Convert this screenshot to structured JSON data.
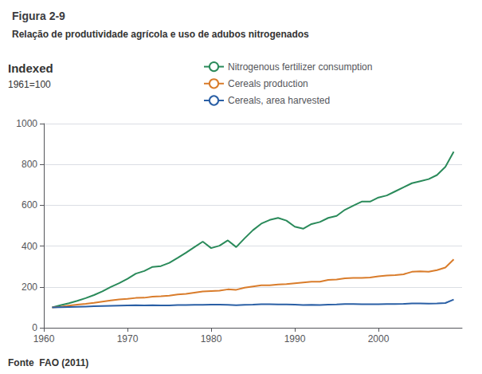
{
  "chart_data": {
    "type": "line",
    "title": "Figura 2-9",
    "subtitle": "Relação de produtividade agrícola e uso de adubos nitrogenados",
    "ylabel": "Indexed",
    "annotations": [
      "1961=100",
      "Fonte  FAO (2011)"
    ],
    "x": [
      1961,
      1962,
      1963,
      1964,
      1965,
      1966,
      1967,
      1968,
      1969,
      1970,
      1971,
      1972,
      1973,
      1974,
      1975,
      1976,
      1977,
      1978,
      1979,
      1980,
      1981,
      1982,
      1983,
      1984,
      1985,
      1986,
      1987,
      1988,
      1989,
      1990,
      1991,
      1992,
      1993,
      1994,
      1995,
      1996,
      1997,
      1998,
      1999,
      2000,
      2001,
      2002,
      2003,
      2004,
      2005,
      2006,
      2007,
      2008,
      2009
    ],
    "series": [
      {
        "name": "Nitrogenous fertilizer consumption",
        "color": "#2a8a5a",
        "values": [
          100,
          110,
          120,
          132,
          145,
          160,
          178,
          200,
          218,
          240,
          265,
          278,
          298,
          302,
          318,
          342,
          368,
          395,
          422,
          390,
          402,
          428,
          395,
          438,
          478,
          510,
          528,
          538,
          525,
          495,
          485,
          508,
          518,
          538,
          548,
          578,
          598,
          618,
          618,
          638,
          648,
          668,
          688,
          708,
          718,
          728,
          748,
          788,
          862
        ]
      },
      {
        "name": "Cereals production",
        "color": "#d97c2b",
        "values": [
          100,
          103,
          108,
          113,
          117,
          122,
          128,
          134,
          139,
          142,
          146,
          147,
          152,
          154,
          157,
          163,
          166,
          172,
          178,
          180,
          182,
          188,
          186,
          196,
          202,
          208,
          208,
          212,
          214,
          218,
          222,
          226,
          226,
          234,
          236,
          242,
          244,
          244,
          246,
          252,
          256,
          258,
          262,
          274,
          276,
          274,
          282,
          295,
          335
        ]
      },
      {
        "name": "Cereals, area harvested",
        "color": "#2a5fa5",
        "values": [
          100,
          101,
          102,
          103,
          104,
          105,
          106,
          107,
          108,
          109,
          110,
          109,
          110,
          109,
          109,
          111,
          111,
          112,
          112,
          113,
          113,
          112,
          110,
          112,
          113,
          115,
          115,
          114,
          114,
          113,
          111,
          112,
          111,
          113,
          114,
          116,
          116,
          115,
          115,
          115,
          116,
          116,
          117,
          119,
          119,
          118,
          119,
          121,
          138
        ]
      }
    ],
    "xlim": [
      1960,
      2010
    ],
    "xticks": [
      1960,
      1970,
      1980,
      1990,
      2000
    ],
    "ylim": [
      0,
      1000
    ],
    "yticks": [
      0,
      200,
      400,
      600,
      800,
      1000
    ],
    "grid": true
  }
}
